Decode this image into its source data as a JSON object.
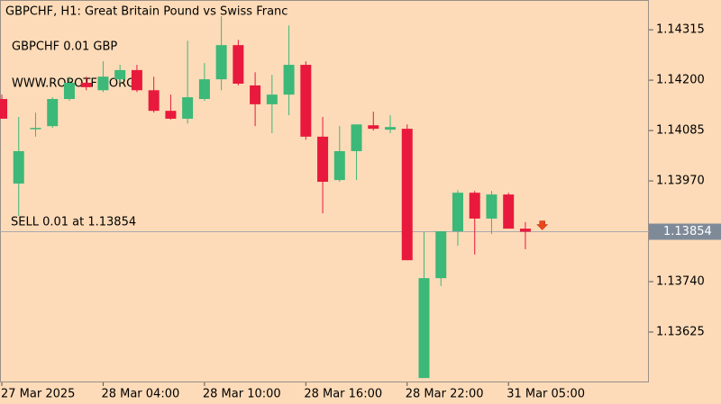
{
  "chart_data": {
    "type": "candlestick",
    "title": "GBPCHF, H1:  Great Britain Pound vs Swiss Franc",
    "annotations": [
      "GBPCHF 0.01 GBP",
      "WWW.ROBOTFX.ORG",
      "SELL 0.01 at 1.13854"
    ],
    "categories": [
      "27 Mar 2025",
      null,
      null,
      null,
      null,
      null,
      "28 Mar 04:00",
      null,
      null,
      null,
      null,
      null,
      "28 Mar 10:00",
      null,
      null,
      null,
      null,
      null,
      "28 Mar 16:00",
      null,
      null,
      null,
      null,
      null,
      "28 Mar 22:00",
      null,
      null,
      null,
      null,
      null,
      "31 Mar 05:00",
      null
    ],
    "open": [
      1.14157,
      1.13964,
      1.14089,
      1.14095,
      1.14157,
      1.14194,
      1.14177,
      1.14202,
      1.14223,
      1.14177,
      1.1413,
      1.14112,
      1.14157,
      1.14202,
      1.1428,
      1.14188,
      1.14145,
      1.14167,
      1.14235,
      1.14071,
      1.13972,
      1.14038,
      1.14097,
      1.14087,
      1.14089,
      1.1352,
      1.13748,
      1.13855,
      1.13943,
      1.13884,
      1.13939,
      1.13861
    ],
    "high": [
      1.14167,
      1.14116,
      1.14126,
      1.14161,
      1.14208,
      1.14208,
      1.14243,
      1.14235,
      1.14235,
      1.14208,
      1.14167,
      1.1429,
      1.14239,
      1.14346,
      1.14292,
      1.14218,
      1.14212,
      1.14325,
      1.14243,
      1.14116,
      1.14095,
      1.14099,
      1.14128,
      1.1412,
      1.14099,
      1.13853,
      1.13855,
      1.13949,
      1.13947,
      1.13947,
      1.13943,
      1.13876
    ],
    "low": [
      1.14112,
      1.1389,
      1.14071,
      1.14091,
      1.14153,
      1.14177,
      1.14173,
      1.14194,
      1.14173,
      1.14126,
      1.1411,
      1.14101,
      1.14153,
      1.14177,
      1.14188,
      1.14095,
      1.14079,
      1.1412,
      1.14064,
      1.13896,
      1.13968,
      1.13972,
      1.14085,
      1.14079,
      1.13789,
      1.1352,
      1.1373,
      1.13822,
      1.13802,
      1.13849,
      1.13861,
      1.13814
    ],
    "close": [
      1.14112,
      1.14038,
      1.14091,
      1.14157,
      1.14194,
      1.14184,
      1.14208,
      1.14223,
      1.14177,
      1.1413,
      1.14112,
      1.14161,
      1.14202,
      1.1428,
      1.14192,
      1.14145,
      1.14167,
      1.14235,
      1.14071,
      1.13968,
      1.14038,
      1.14099,
      1.14089,
      1.14093,
      1.13789,
      1.13748,
      1.13855,
      1.13943,
      1.13884,
      1.13939,
      1.13861,
      1.13854
    ],
    "up_color": "#3cb878",
    "down_color": "#e8193c",
    "current_price": 1.13854,
    "ylim": [
      1.1351,
      1.14383
    ],
    "yticks": [
      1.14315,
      {
        "value": 1.142,
        "label": "1.14200"
      },
      1.14085,
      {
        "value": 1.1397,
        "label": "1.13970"
      },
      {
        "value": 1.1374,
        "label": "1.13740"
      },
      1.13625
    ],
    "grid": false
  }
}
